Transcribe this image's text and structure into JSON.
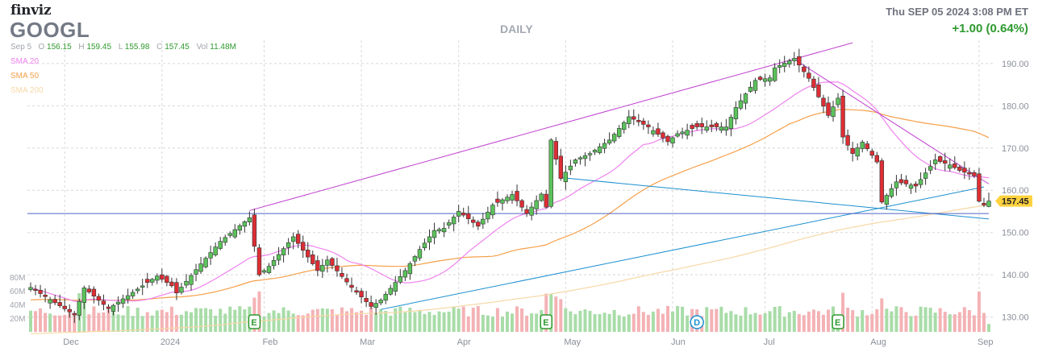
{
  "header": {
    "brand": "finviz",
    "symbol": "GOOGL",
    "timeframe": "DAILY",
    "datetime": "Thu SEP 05 2024 3:08 PM ET",
    "change": "+1.00 (0.64%)",
    "ohlc": {
      "date": "Sep 5",
      "open_label": "O",
      "open": "156.15",
      "high_label": "H",
      "high": "159.45",
      "low_label": "L",
      "low": "155.98",
      "close_label": "C",
      "close": "157.45",
      "volume_label": "Vol",
      "volume": "11.48M"
    }
  },
  "legend": [
    {
      "name": "SMA 20",
      "color": "#ee82ee"
    },
    {
      "name": "SMA 50",
      "color": "#f5a04a"
    },
    {
      "name": "SMA 200",
      "color": "#f7d8a6"
    }
  ],
  "chart_data": {
    "type": "candlestick",
    "symbol": "GOOGL",
    "y_axis": {
      "ticks": [
        130,
        140,
        150,
        160,
        170,
        180,
        190
      ],
      "labels": [
        "130.00",
        "140.00",
        "150.00",
        "160.00",
        "170.00",
        "180.00",
        "190.00"
      ],
      "range": [
        126.5,
        195.5
      ]
    },
    "volume_axis": {
      "ticks": [
        20,
        40,
        60,
        80
      ],
      "labels": [
        "20M",
        "40M",
        "60M",
        "80M"
      ]
    },
    "x_axis": {
      "labels": [
        "Dec",
        "2024",
        "Feb",
        "Mar",
        "Apr",
        "May",
        "Jun",
        "Jul",
        "Aug",
        "Sep"
      ]
    },
    "last_price_label": "157.45",
    "colors": {
      "up": "#5bc25b",
      "down": "#dd2e35",
      "up_volume": "#a8dca8",
      "down_volume": "#f4b2b5",
      "trend_purple": "#c040d0",
      "trend_blue": "#1a8fd0",
      "horizontal": "#5060c8",
      "grid": "#d8d8d8"
    },
    "anchors": [
      {
        "date": "Nov 21",
        "close": 137.0
      },
      {
        "date": "Dec 5",
        "close": 130.5
      },
      {
        "date": "Dec 7",
        "close": 136.9
      },
      {
        "date": "Dec 14",
        "close": 132.0
      },
      {
        "date": "Dec 29",
        "close": 139.7
      },
      {
        "date": "Jan 4",
        "close": 137.4
      },
      {
        "date": "Jan 5",
        "close": 135.7
      },
      {
        "date": "Jan 12",
        "close": 142.6
      },
      {
        "date": "Jan 19",
        "close": 147.9
      },
      {
        "date": "Jan 29",
        "close": 153.5
      },
      {
        "date": "Jan 31",
        "close": 140.0
      },
      {
        "date": "Feb 2",
        "close": 142.0
      },
      {
        "date": "Feb 9",
        "close": 149.0
      },
      {
        "date": "Feb 16",
        "close": 141.0
      },
      {
        "date": "Feb 21",
        "close": 143.5
      },
      {
        "date": "Feb 28",
        "close": 137.0
      },
      {
        "date": "Mar 5",
        "close": 132.5
      },
      {
        "date": "Mar 7",
        "close": 134.0
      },
      {
        "date": "Mar 14",
        "close": 141.0
      },
      {
        "date": "Mar 19",
        "close": 146.0
      },
      {
        "date": "Mar 22",
        "close": 150.5
      },
      {
        "date": "Mar 26",
        "close": 151.0
      },
      {
        "date": "Apr 1",
        "close": 155.0
      },
      {
        "date": "Apr 5",
        "close": 151.5
      },
      {
        "date": "Apr 10",
        "close": 156.5
      },
      {
        "date": "Apr 16",
        "close": 159.0
      },
      {
        "date": "Apr 19",
        "close": 154.5
      },
      {
        "date": "Apr 24",
        "close": 159.1
      },
      {
        "date": "Apr 25",
        "close": 156.0
      },
      {
        "date": "Apr 26",
        "close": 171.9
      },
      {
        "date": "Apr 30",
        "close": 162.8
      },
      {
        "date": "May 3",
        "close": 167.2
      },
      {
        "date": "May 8",
        "close": 168.7
      },
      {
        "date": "May 14",
        "close": 171.9
      },
      {
        "date": "May 20",
        "close": 177.4
      },
      {
        "date": "May 24",
        "close": 175.0
      },
      {
        "date": "May 31",
        "close": 171.5
      },
      {
        "date": "Jun 4",
        "close": 173.4
      },
      {
        "date": "Jun 10",
        "close": 175.0
      },
      {
        "date": "Jun 13",
        "close": 175.0
      },
      {
        "date": "Jun 18",
        "close": 175.0
      },
      {
        "date": "Jun 21",
        "close": 179.6
      },
      {
        "date": "Jun 27",
        "close": 186.0
      },
      {
        "date": "Jul 2",
        "close": 186.6
      },
      {
        "date": "Jul 3",
        "close": 189.0
      },
      {
        "date": "Jul 10",
        "close": 191.2
      },
      {
        "date": "Jul 15",
        "close": 186.5
      },
      {
        "date": "Jul 19",
        "close": 177.7
      },
      {
        "date": "Jul 23",
        "close": 181.8
      },
      {
        "date": "Jul 24",
        "close": 172.6
      },
      {
        "date": "Jul 26",
        "close": 168.7
      },
      {
        "date": "Jul 30",
        "close": 171.4
      },
      {
        "date": "Aug 2",
        "close": 166.7
      },
      {
        "date": "Aug 5",
        "close": 157.2
      },
      {
        "date": "Aug 8",
        "close": 162.0
      },
      {
        "date": "Aug 14",
        "close": 161.0
      },
      {
        "date": "Aug 20",
        "close": 167.2
      },
      {
        "date": "Aug 23",
        "close": 166.0
      },
      {
        "date": "Aug 27",
        "close": 164.7
      },
      {
        "date": "Aug 30",
        "close": 163.4
      },
      {
        "date": "Sep 3",
        "close": 157.4
      },
      {
        "date": "Sep 4",
        "close": 156.5
      },
      {
        "date": "Sep 5",
        "close": 157.45
      }
    ],
    "events": [
      {
        "date": "Jan 30",
        "label": "E"
      },
      {
        "date": "Apr 25",
        "label": "E"
      },
      {
        "date": "Jun 10",
        "label": "D"
      },
      {
        "date": "Jul 23",
        "label": "E"
      }
    ],
    "trendlines": [
      {
        "color": "purple",
        "from": {
          "date": "Jan 29",
          "price": 155.2
        },
        "to": {
          "date": "Jul 26",
          "price": 194.9
        }
      },
      {
        "color": "purple",
        "from": {
          "date": "Jul 10",
          "price": 191.0
        },
        "to": {
          "date": "Sep 5",
          "price": 161.5
        }
      },
      {
        "color": "blue",
        "from": {
          "date": "Mar 7",
          "price": 131.8
        },
        "to": {
          "date": "Sep 4",
          "price": 160.8
        }
      },
      {
        "color": "blue",
        "from": {
          "date": "Apr 30",
          "price": 163.0
        },
        "to": {
          "date": "Sep 5",
          "price": 153.2
        }
      },
      {
        "color": "horizontal",
        "from": {
          "date": "Nov 21",
          "price": 154.5
        },
        "to": {
          "date": "Sep 5",
          "price": 154.5
        }
      }
    ]
  }
}
